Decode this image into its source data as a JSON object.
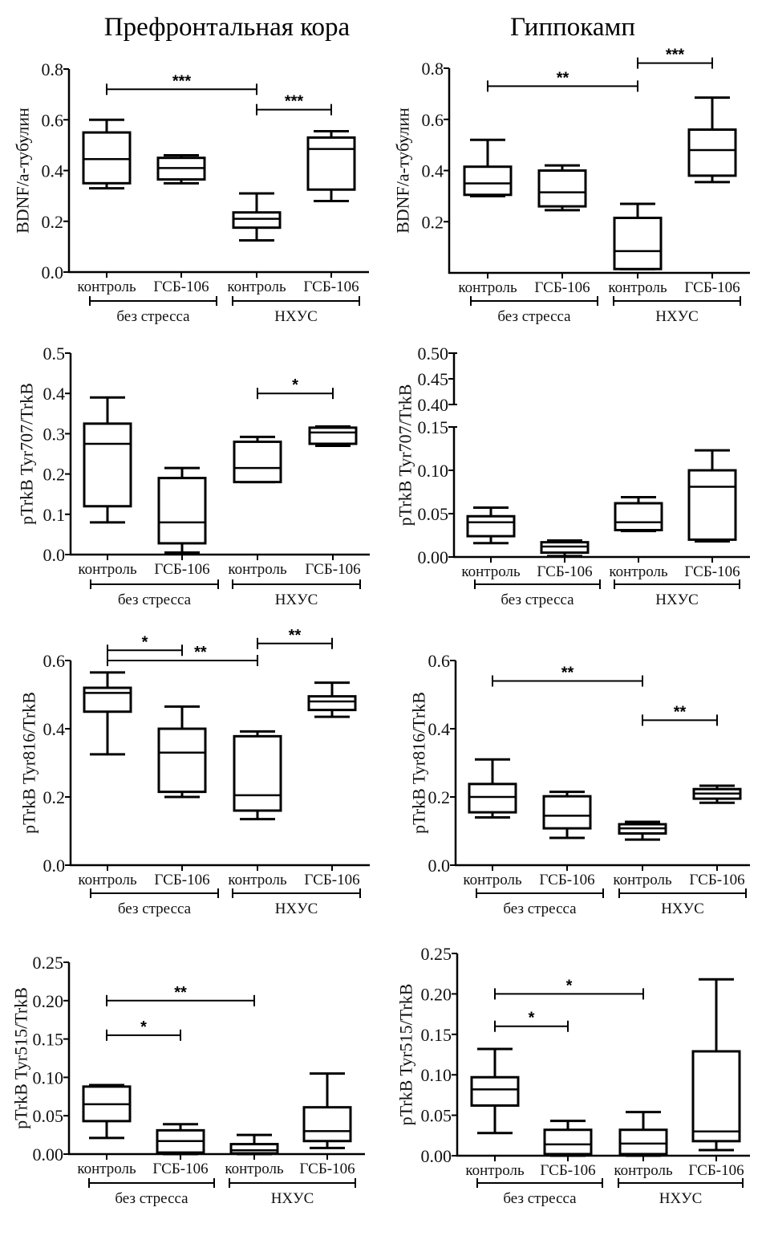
{
  "figure": {
    "column_titles": [
      "Префронтальная кора",
      "Гиппокамп"
    ]
  },
  "chart_data": [
    {
      "type": "boxplot",
      "region": "Префронтальная кора",
      "ylabel": "BDNF/a-тубулин",
      "ylim": [
        0,
        0.8
      ],
      "yticks": [
        0.0,
        0.2,
        0.4,
        0.6,
        0.8
      ],
      "ytick_labels": [
        "0.0",
        "0.2",
        "0.4",
        "0.6",
        "0.8"
      ],
      "categories": [
        "контроль",
        "ГСБ-106",
        "контроль",
        "ГСБ-106"
      ],
      "groups": [
        {
          "label": "без стресса",
          "members": [
            0,
            1
          ]
        },
        {
          "label": "НХУС",
          "members": [
            2,
            3
          ]
        }
      ],
      "boxes": [
        {
          "min": 0.33,
          "q1": 0.35,
          "median": 0.445,
          "q3": 0.55,
          "max": 0.6
        },
        {
          "min": 0.35,
          "q1": 0.365,
          "median": 0.41,
          "q3": 0.45,
          "max": 0.46
        },
        {
          "min": 0.125,
          "q1": 0.175,
          "median": 0.21,
          "q3": 0.235,
          "max": 0.31
        },
        {
          "min": 0.28,
          "q1": 0.325,
          "median": 0.485,
          "q3": 0.53,
          "max": 0.555
        }
      ],
      "significance": [
        {
          "from": 0,
          "to": 2,
          "y": 0.72,
          "label": "***"
        },
        {
          "from": 2,
          "to": 3,
          "y": 0.64,
          "label": "***"
        }
      ]
    },
    {
      "type": "boxplot",
      "region": "Гиппокамп",
      "ylabel": "BDNF/a-тубулин",
      "ylim": [
        0,
        0.8
      ],
      "yticks": [
        0.2,
        0.4,
        0.6,
        0.8
      ],
      "ytick_labels": [
        "0.2",
        "0.4",
        "0.6",
        "0.8"
      ],
      "categories": [
        "контроль",
        "ГСБ-106",
        "контроль",
        "ГСБ-106"
      ],
      "groups": [
        {
          "label": "без стресса",
          "members": [
            0,
            1
          ]
        },
        {
          "label": "НХУС",
          "members": [
            2,
            3
          ]
        }
      ],
      "boxes": [
        {
          "min": 0.3,
          "q1": 0.305,
          "median": 0.35,
          "q3": 0.415,
          "max": 0.52
        },
        {
          "min": 0.245,
          "q1": 0.26,
          "median": 0.315,
          "q3": 0.4,
          "max": 0.42
        },
        {
          "min": 0.015,
          "q1": 0.015,
          "median": 0.085,
          "q3": 0.215,
          "max": 0.27
        },
        {
          "min": 0.355,
          "q1": 0.38,
          "median": 0.48,
          "q3": 0.56,
          "max": 0.685
        }
      ],
      "significance": [
        {
          "from": 0,
          "to": 2,
          "y": 0.73,
          "label": "**"
        },
        {
          "from": 2,
          "to": 3,
          "y": 0.82,
          "label": "***"
        }
      ]
    },
    {
      "type": "boxplot",
      "region": "Префронтальная кора",
      "ylabel": "pTrkB Tyr707/TrkB",
      "ylim": [
        0,
        0.5
      ],
      "yticks": [
        0.0,
        0.1,
        0.2,
        0.3,
        0.4,
        0.5
      ],
      "ytick_labels": [
        "0.0",
        "0.1",
        "0.2",
        "0.3",
        "0.4",
        "0.5"
      ],
      "categories": [
        "контроль",
        "ГСБ-106",
        "контроль",
        "ГСБ-106"
      ],
      "groups": [
        {
          "label": "без стресса",
          "members": [
            0,
            1
          ]
        },
        {
          "label": "НХУС",
          "members": [
            2,
            3
          ]
        }
      ],
      "boxes": [
        {
          "min": 0.08,
          "q1": 0.12,
          "median": 0.275,
          "q3": 0.325,
          "max": 0.39
        },
        {
          "min": 0.005,
          "q1": 0.028,
          "median": 0.08,
          "q3": 0.19,
          "max": 0.215
        },
        {
          "min": 0.18,
          "q1": 0.18,
          "median": 0.215,
          "q3": 0.28,
          "max": 0.292
        },
        {
          "min": 0.27,
          "q1": 0.275,
          "median": 0.303,
          "q3": 0.315,
          "max": 0.318
        }
      ],
      "significance": [
        {
          "from": 2,
          "to": 3,
          "y": 0.4,
          "label": "*"
        }
      ]
    },
    {
      "type": "boxplot",
      "region": "Гиппокамп",
      "ylabel": "pTrkB Tyr707/TrkB",
      "ylim": [
        0,
        0.15
      ],
      "axis_break": {
        "lower": [
          0,
          0.15
        ],
        "upper": [
          0.4,
          0.5
        ]
      },
      "yticks": [
        0.0,
        0.05,
        0.1,
        0.15
      ],
      "ytick_labels": [
        "0.00",
        "0.05",
        "0.10",
        "0.15"
      ],
      "upper_yticks": [
        0.4,
        0.45,
        0.5
      ],
      "upper_ytick_labels": [
        "0.40",
        "0.45",
        "0.50"
      ],
      "categories": [
        "контроль",
        "ГСБ-106",
        "контроль",
        "ГСБ-106"
      ],
      "groups": [
        {
          "label": "без стресса",
          "members": [
            0,
            1
          ]
        },
        {
          "label": "НХУС",
          "members": [
            2,
            3
          ]
        }
      ],
      "boxes": [
        {
          "min": 0.016,
          "q1": 0.024,
          "median": 0.04,
          "q3": 0.047,
          "max": 0.057
        },
        {
          "min": 0.001,
          "q1": 0.005,
          "median": 0.012,
          "q3": 0.017,
          "max": 0.019
        },
        {
          "min": 0.03,
          "q1": 0.031,
          "median": 0.04,
          "q3": 0.062,
          "max": 0.069
        },
        {
          "min": 0.018,
          "q1": 0.02,
          "median": 0.081,
          "q3": 0.1,
          "max": 0.123
        }
      ],
      "significance": []
    },
    {
      "type": "boxplot",
      "region": "Префронтальная кора",
      "ylabel": "pTrkB Tyr816/TrkB",
      "ylim": [
        0,
        0.6
      ],
      "yticks": [
        0.0,
        0.2,
        0.4,
        0.6
      ],
      "ytick_labels": [
        "0.0",
        "0.2",
        "0.4",
        "0.6"
      ],
      "categories": [
        "контроль",
        "ГСБ-106",
        "контроль",
        "ГСБ-106"
      ],
      "groups": [
        {
          "label": "без стресса",
          "members": [
            0,
            1
          ]
        },
        {
          "label": "НХУС",
          "members": [
            2,
            3
          ]
        }
      ],
      "boxes": [
        {
          "min": 0.325,
          "q1": 0.45,
          "median": 0.505,
          "q3": 0.52,
          "max": 0.565
        },
        {
          "min": 0.2,
          "q1": 0.215,
          "median": 0.33,
          "q3": 0.4,
          "max": 0.465
        },
        {
          "min": 0.135,
          "q1": 0.16,
          "median": 0.205,
          "q3": 0.378,
          "max": 0.392
        },
        {
          "min": 0.435,
          "q1": 0.455,
          "median": 0.48,
          "q3": 0.495,
          "max": 0.535
        }
      ],
      "significance": [
        {
          "from": 0,
          "to": 1,
          "y": 0.63,
          "label": "*"
        },
        {
          "from": 0,
          "to": 2,
          "y": 0.6,
          "label": "**"
        },
        {
          "from": 2,
          "to": 3,
          "y": 0.65,
          "label": "**"
        }
      ]
    },
    {
      "type": "boxplot",
      "region": "Гиппокамп",
      "ylabel": "pTrkB Tyr816/TrkB",
      "ylim": [
        0,
        0.6
      ],
      "yticks": [
        0.0,
        0.2,
        0.4,
        0.6
      ],
      "ytick_labels": [
        "0.0",
        "0.2",
        "0.4",
        "0.6"
      ],
      "categories": [
        "контроль",
        "ГСБ-106",
        "контроль",
        "ГСБ-106"
      ],
      "groups": [
        {
          "label": "без стресса",
          "members": [
            0,
            1
          ]
        },
        {
          "label": "НХУС",
          "members": [
            2,
            3
          ]
        }
      ],
      "boxes": [
        {
          "min": 0.14,
          "q1": 0.155,
          "median": 0.2,
          "q3": 0.238,
          "max": 0.31
        },
        {
          "min": 0.08,
          "q1": 0.108,
          "median": 0.145,
          "q3": 0.202,
          "max": 0.215
        },
        {
          "min": 0.075,
          "q1": 0.093,
          "median": 0.108,
          "q3": 0.12,
          "max": 0.127
        },
        {
          "min": 0.183,
          "q1": 0.195,
          "median": 0.21,
          "q3": 0.223,
          "max": 0.233
        }
      ],
      "significance": [
        {
          "from": 0,
          "to": 2,
          "y": 0.54,
          "label": "**"
        },
        {
          "from": 2,
          "to": 3,
          "y": 0.425,
          "label": "**"
        }
      ]
    },
    {
      "type": "boxplot",
      "region": "Префронтальная кора",
      "ylabel": "pTrkB Tyr515/TrkB",
      "ylim": [
        0,
        0.25
      ],
      "yticks": [
        0.0,
        0.05,
        0.1,
        0.15,
        0.2,
        0.25
      ],
      "ytick_labels": [
        "0.00",
        "0.05",
        "0.10",
        "0.15",
        "0.20",
        "0.25"
      ],
      "categories": [
        "контроль",
        "ГСБ-106",
        "контроль",
        "ГСБ-106"
      ],
      "groups": [
        {
          "label": "без стресса",
          "members": [
            0,
            1
          ]
        },
        {
          "label": "НХУС",
          "members": [
            2,
            3
          ]
        }
      ],
      "boxes": [
        {
          "min": 0.021,
          "q1": 0.043,
          "median": 0.065,
          "q3": 0.088,
          "max": 0.09
        },
        {
          "min": 0.0,
          "q1": 0.002,
          "median": 0.017,
          "q3": 0.031,
          "max": 0.039
        },
        {
          "min": 0.0,
          "q1": 0.001,
          "median": 0.005,
          "q3": 0.013,
          "max": 0.025
        },
        {
          "min": 0.008,
          "q1": 0.017,
          "median": 0.03,
          "q3": 0.061,
          "max": 0.105
        }
      ],
      "significance": [
        {
          "from": 0,
          "to": 2,
          "y": 0.2,
          "label": "**"
        },
        {
          "from": 0,
          "to": 1,
          "y": 0.155,
          "label": "*"
        }
      ]
    },
    {
      "type": "boxplot",
      "region": "Гиппокамп",
      "ylabel": "pTrkB Tyr515/TrkB",
      "ylim": [
        0,
        0.25
      ],
      "yticks": [
        0.0,
        0.05,
        0.1,
        0.15,
        0.2,
        0.25
      ],
      "ytick_labels": [
        "0.00",
        "0.05",
        "0.10",
        "0.15",
        "0.20",
        "0.25"
      ],
      "categories": [
        "контроль",
        "ГСБ-106",
        "контроль",
        "ГСБ-106"
      ],
      "groups": [
        {
          "label": "без стресса",
          "members": [
            0,
            1
          ]
        },
        {
          "label": "НХУС",
          "members": [
            2,
            3
          ]
        }
      ],
      "boxes": [
        {
          "min": 0.028,
          "q1": 0.062,
          "median": 0.082,
          "q3": 0.097,
          "max": 0.132
        },
        {
          "min": 0.0,
          "q1": 0.002,
          "median": 0.014,
          "q3": 0.032,
          "max": 0.043
        },
        {
          "min": 0.0,
          "q1": 0.002,
          "median": 0.015,
          "q3": 0.032,
          "max": 0.054
        },
        {
          "min": 0.007,
          "q1": 0.018,
          "median": 0.03,
          "q3": 0.129,
          "max": 0.218
        }
      ],
      "significance": [
        {
          "from": 0,
          "to": 2,
          "y": 0.2,
          "label": "*"
        },
        {
          "from": 0,
          "to": 1,
          "y": 0.16,
          "label": "*"
        }
      ]
    }
  ]
}
